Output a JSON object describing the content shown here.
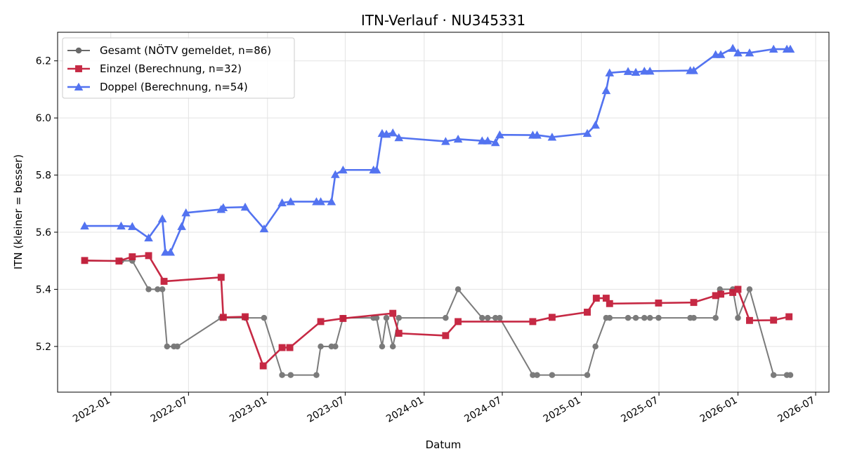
{
  "chart_data": {
    "type": "line",
    "title": "ITN-Verlauf · NU345331",
    "xlabel": "Datum",
    "ylabel": "ITN  (kleiner = besser)",
    "xlim": [
      "2021-08-30",
      "2026-08-01"
    ],
    "ylim": [
      5.04,
      6.3
    ],
    "grid": true,
    "legend_position": "top-left",
    "x_ticks": [
      "2022-01",
      "2022-07",
      "2023-01",
      "2023-07",
      "2024-01",
      "2024-07",
      "2025-01",
      "2025-07",
      "2026-01",
      "2026-07"
    ],
    "y_ticks": [
      5.2,
      5.4,
      5.6,
      5.8,
      6.0,
      6.2
    ],
    "series": [
      {
        "name": "Gesamt (NÖTV gemeldet, n=86)",
        "color": "#444444",
        "marker": "circle",
        "points": [
          [
            "2021-11-01",
            5.5
          ],
          [
            "2022-01-25",
            5.5
          ],
          [
            "2022-02-20",
            5.5
          ],
          [
            "2022-03-30",
            5.4
          ],
          [
            "2022-04-20",
            5.4
          ],
          [
            "2022-05-01",
            5.4
          ],
          [
            "2022-05-12",
            5.2
          ],
          [
            "2022-05-28",
            5.2
          ],
          [
            "2022-06-05",
            5.2
          ],
          [
            "2022-09-15",
            5.3
          ],
          [
            "2022-09-20",
            5.3
          ],
          [
            "2022-11-10",
            5.3
          ],
          [
            "2022-12-24",
            5.3
          ],
          [
            "2023-02-04",
            5.1
          ],
          [
            "2023-02-24",
            5.1
          ],
          [
            "2023-04-25",
            5.1
          ],
          [
            "2023-05-05",
            5.2
          ],
          [
            "2023-05-30",
            5.2
          ],
          [
            "2023-06-08",
            5.2
          ],
          [
            "2023-06-26",
            5.3
          ],
          [
            "2023-09-05",
            5.3
          ],
          [
            "2023-09-12",
            5.3
          ],
          [
            "2023-09-25",
            5.2
          ],
          [
            "2023-10-05",
            5.3
          ],
          [
            "2023-10-20",
            5.2
          ],
          [
            "2023-11-03",
            5.3
          ],
          [
            "2024-02-20",
            5.3
          ],
          [
            "2024-03-20",
            5.4
          ],
          [
            "2024-05-15",
            5.3
          ],
          [
            "2024-05-28",
            5.3
          ],
          [
            "2024-06-15",
            5.3
          ],
          [
            "2024-06-25",
            5.3
          ],
          [
            "2024-09-10",
            5.1
          ],
          [
            "2024-09-20",
            5.1
          ],
          [
            "2024-10-25",
            5.1
          ],
          [
            "2025-01-15",
            5.1
          ],
          [
            "2025-02-03",
            5.2
          ],
          [
            "2025-02-28",
            5.3
          ],
          [
            "2025-03-08",
            5.3
          ],
          [
            "2025-04-20",
            5.3
          ],
          [
            "2025-05-08",
            5.3
          ],
          [
            "2025-05-28",
            5.3
          ],
          [
            "2025-06-10",
            5.3
          ],
          [
            "2025-06-30",
            5.3
          ],
          [
            "2025-09-12",
            5.3
          ],
          [
            "2025-09-20",
            5.3
          ],
          [
            "2025-11-10",
            5.3
          ],
          [
            "2025-11-20",
            5.4
          ],
          [
            "2025-12-20",
            5.4
          ],
          [
            "2026-01-01",
            5.3
          ],
          [
            "2026-01-28",
            5.4
          ],
          [
            "2026-03-25",
            5.1
          ],
          [
            "2026-04-25",
            5.1
          ],
          [
            "2026-05-03",
            5.1
          ]
        ]
      },
      {
        "name": "Einzel (Berechnung, n=32)",
        "color": "#c41e3a",
        "marker": "square",
        "points": [
          [
            "2021-11-01",
            5.501
          ],
          [
            "2022-01-20",
            5.499
          ],
          [
            "2022-02-20",
            5.514
          ],
          [
            "2022-03-30",
            5.518
          ],
          [
            "2022-05-05",
            5.428
          ],
          [
            "2022-09-15",
            5.442
          ],
          [
            "2022-09-20",
            5.302
          ],
          [
            "2022-11-10",
            5.304
          ],
          [
            "2022-12-22",
            5.132
          ],
          [
            "2023-02-04",
            5.196
          ],
          [
            "2023-02-22",
            5.196
          ],
          [
            "2023-05-05",
            5.287
          ],
          [
            "2023-06-26",
            5.298
          ],
          [
            "2023-10-20",
            5.316
          ],
          [
            "2023-11-03",
            5.246
          ],
          [
            "2024-02-20",
            5.238
          ],
          [
            "2024-03-20",
            5.287
          ],
          [
            "2024-09-10",
            5.287
          ],
          [
            "2024-10-25",
            5.302
          ],
          [
            "2025-01-15",
            5.32
          ],
          [
            "2025-02-05",
            5.369
          ],
          [
            "2025-02-28",
            5.369
          ],
          [
            "2025-03-08",
            5.35
          ],
          [
            "2025-06-30",
            5.352
          ],
          [
            "2025-09-20",
            5.354
          ],
          [
            "2025-11-10",
            5.378
          ],
          [
            "2025-11-22",
            5.383
          ],
          [
            "2025-12-20",
            5.389
          ],
          [
            "2026-01-01",
            5.4
          ],
          [
            "2026-01-28",
            5.291
          ],
          [
            "2026-03-25",
            5.292
          ],
          [
            "2026-04-30",
            5.304
          ]
        ]
      },
      {
        "name": "Doppel (Berechnung, n=54)",
        "color": "#4a6cf0",
        "marker": "triangle",
        "points": [
          [
            "2021-11-01",
            5.622
          ],
          [
            "2022-01-25",
            5.622
          ],
          [
            "2022-02-20",
            5.62
          ],
          [
            "2022-03-30",
            5.58
          ],
          [
            "2022-05-01",
            5.647
          ],
          [
            "2022-05-08",
            5.53
          ],
          [
            "2022-05-20",
            5.53
          ],
          [
            "2022-06-15",
            5.62
          ],
          [
            "2022-06-25",
            5.668
          ],
          [
            "2022-09-15",
            5.68
          ],
          [
            "2022-09-20",
            5.686
          ],
          [
            "2022-11-10",
            5.688
          ],
          [
            "2022-12-24",
            5.612
          ],
          [
            "2023-02-04",
            5.703
          ],
          [
            "2023-02-24",
            5.707
          ],
          [
            "2023-04-25",
            5.707
          ],
          [
            "2023-05-05",
            5.707
          ],
          [
            "2023-05-30",
            5.707
          ],
          [
            "2023-06-08",
            5.802
          ],
          [
            "2023-06-26",
            5.818
          ],
          [
            "2023-09-05",
            5.818
          ],
          [
            "2023-09-12",
            5.818
          ],
          [
            "2023-09-25",
            5.946
          ],
          [
            "2023-10-05",
            5.943
          ],
          [
            "2023-10-20",
            5.948
          ],
          [
            "2023-11-03",
            5.931
          ],
          [
            "2024-02-20",
            5.918
          ],
          [
            "2024-03-20",
            5.926
          ],
          [
            "2024-05-15",
            5.92
          ],
          [
            "2024-05-28",
            5.92
          ],
          [
            "2024-06-15",
            5.914
          ],
          [
            "2024-06-25",
            5.941
          ],
          [
            "2024-09-10",
            5.94
          ],
          [
            "2024-09-20",
            5.94
          ],
          [
            "2024-10-25",
            5.933
          ],
          [
            "2025-01-15",
            5.946
          ],
          [
            "2025-02-03",
            5.975
          ],
          [
            "2025-02-28",
            6.096
          ],
          [
            "2025-03-08",
            6.158
          ],
          [
            "2025-04-20",
            6.163
          ],
          [
            "2025-05-08",
            6.16
          ],
          [
            "2025-05-28",
            6.164
          ],
          [
            "2025-06-10",
            6.164
          ],
          [
            "2025-09-12",
            6.166
          ],
          [
            "2025-09-20",
            6.166
          ],
          [
            "2025-11-10",
            6.222
          ],
          [
            "2025-11-22",
            6.222
          ],
          [
            "2025-12-20",
            6.244
          ],
          [
            "2026-01-01",
            6.228
          ],
          [
            "2026-01-28",
            6.228
          ],
          [
            "2026-03-25",
            6.241
          ],
          [
            "2026-04-25",
            6.241
          ],
          [
            "2026-05-03",
            6.241
          ]
        ]
      }
    ]
  }
}
